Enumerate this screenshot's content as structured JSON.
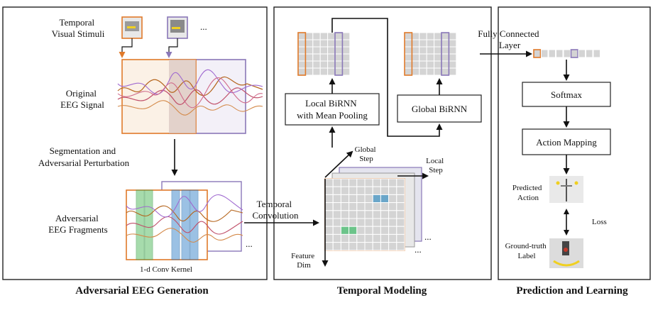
{
  "panels": {
    "generation": {
      "caption": "Adversarial EEG Generation",
      "stimuli_label": [
        "Temporal",
        "Visual Stimuli"
      ],
      "original_label": [
        "Original",
        "EEG Signal"
      ],
      "segmentation_label": [
        "Segmentation and",
        "Adversarial Perturbation"
      ],
      "fragments_label": [
        "Adversarial",
        "EEG Fragments"
      ],
      "kernel_label": "1-d Conv Kernel",
      "ellipsis": "..."
    },
    "modeling": {
      "caption": "Temporal Modeling",
      "temporal_conv_label": [
        "Temporal",
        "Convolution"
      ],
      "local_birnn_label": [
        "Local BiRNN",
        "with Mean Pooling"
      ],
      "global_birnn_label": "Global BiRNN",
      "global_step_label": [
        "Global",
        "Step"
      ],
      "local_step_label": [
        "Local",
        "Step"
      ],
      "feature_dim_label": [
        "Feature",
        "Dim"
      ],
      "ellipsis": "..."
    },
    "prediction": {
      "caption": "Prediction and Learning",
      "fc_label": [
        "Fully Connected",
        "Layer"
      ],
      "softmax_label": "Softmax",
      "action_mapping_label": "Action Mapping",
      "predicted_label": [
        "Predicted",
        "Action"
      ],
      "loss_label": "Loss",
      "ground_truth_label": [
        "Ground-truth",
        "Label"
      ]
    }
  },
  "colors": {
    "orange": "#e07a2a",
    "purple": "#8a78b8",
    "green": "#5fbf6a",
    "blue": "#4a8fcf",
    "grid_cell": "#d4d4d4",
    "teal_cell": "#6aa6c9",
    "green_cell": "#6cc48a"
  },
  "icons": [
    "stimulus-thumbnail",
    "robot-hand-image"
  ]
}
